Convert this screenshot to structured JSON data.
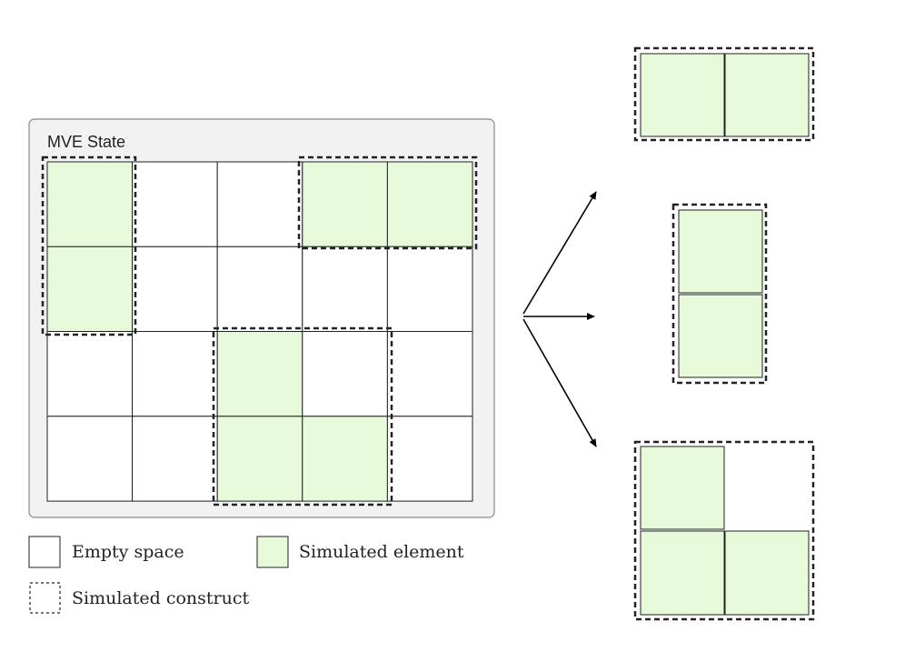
{
  "panel": {
    "title": "MVE State"
  },
  "legend": {
    "empty_label": "Empty space",
    "element_label": "Simulated element",
    "construct_label": "Simulated construct"
  },
  "grid": {
    "rows": 4,
    "cols": 5,
    "filled_cells": [
      [
        0,
        0
      ],
      [
        1,
        0
      ],
      [
        0,
        3
      ],
      [
        0,
        4
      ],
      [
        2,
        2
      ],
      [
        3,
        2
      ],
      [
        3,
        3
      ]
    ]
  },
  "constructs": [
    {
      "name": "horizontal-pair",
      "cells": [
        [
          0,
          3
        ],
        [
          0,
          4
        ]
      ]
    },
    {
      "name": "vertical-pair",
      "cells": [
        [
          0,
          0
        ],
        [
          1,
          0
        ]
      ]
    },
    {
      "name": "l-shape",
      "cells": [
        [
          2,
          2
        ],
        [
          3,
          2
        ],
        [
          3,
          3
        ]
      ]
    }
  ],
  "colors": {
    "element_fill": "#e6fad9",
    "panel_fill": "#f2f2f2",
    "stroke": "#222222"
  }
}
